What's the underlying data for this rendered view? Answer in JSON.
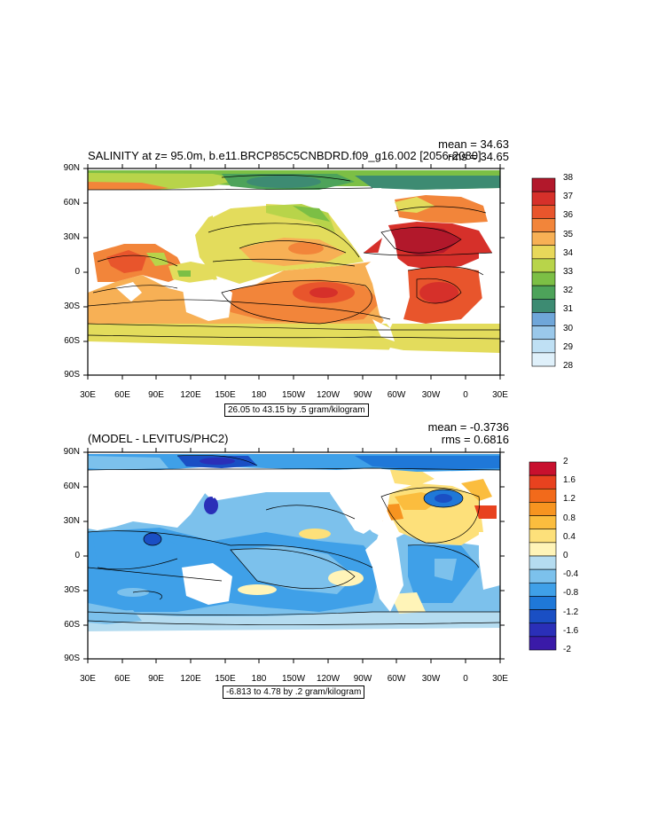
{
  "panels": [
    {
      "title": "SALINITY at z=  95.0m, b.e11.BRCP85C5CNBDRD.f09_g16.002 [2056-2080]",
      "mean": "mean = 34.63",
      "rms": "rms = 34.65",
      "info": "26.05 to 43.15 by .5 gram/kilogram",
      "lat_labels": [
        "90N",
        "60N",
        "30N",
        "0",
        "30S",
        "60S",
        "90S"
      ],
      "lon_labels": [
        "30E",
        "60E",
        "90E",
        "120E",
        "150E",
        "180",
        "150W",
        "120W",
        "90W",
        "60W",
        "30W",
        "0",
        "30E"
      ],
      "colorbar": {
        "labels": [
          "38",
          "37",
          "36",
          "35",
          "34",
          "33",
          "32",
          "31",
          "30",
          "29",
          "28"
        ],
        "colors": [
          "#b2182b",
          "#d6302a",
          "#e8552c",
          "#f2853a",
          "#f7b055",
          "#e8d85a",
          "#b8d44a",
          "#7cbf45",
          "#4da35a",
          "#3d8b72",
          "#6fa6d9",
          "#9ac8ea",
          "#bfe0f4",
          "#dff0fa"
        ]
      }
    },
    {
      "title": "(MODEL - LEVITUS/PHC2)",
      "mean": "mean = -0.3736",
      "rms": "rms = 0.6816",
      "info": "-6.813 to 4.78 by .2 gram/kilogram",
      "lat_labels": [
        "90N",
        "60N",
        "30N",
        "0",
        "30S",
        "60S",
        "90S"
      ],
      "lon_labels": [
        "30E",
        "60E",
        "90E",
        "120E",
        "150E",
        "180",
        "150W",
        "120W",
        "90W",
        "60W",
        "30W",
        "0",
        "30E"
      ],
      "colorbar": {
        "labels": [
          "2",
          "1.6",
          "1.2",
          "0.8",
          "0.4",
          "0",
          "-0.4",
          "-0.8",
          "-1.2",
          "-1.6",
          "-2"
        ],
        "colors": [
          "#c8102e",
          "#e8421f",
          "#f26a1b",
          "#f79420",
          "#fbbd3e",
          "#fde07a",
          "#fff4b8",
          "#b5dcf0",
          "#7cc1ec",
          "#3fa0e8",
          "#1f78d8",
          "#1a4fc4",
          "#2a2fb8",
          "#3a1aa8"
        ]
      }
    }
  ]
}
